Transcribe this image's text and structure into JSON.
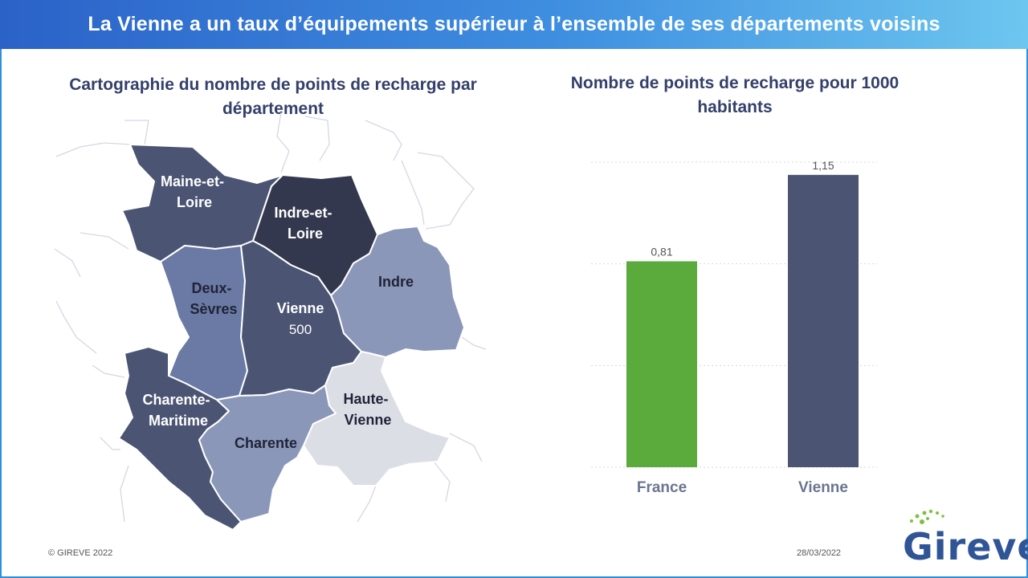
{
  "header": {
    "title": "La Vienne a un taux d’équipements supérieur à l’ensemble de ses départements voisins"
  },
  "map": {
    "title": "Cartographie du nombre de points de recharge par département",
    "departments": [
      {
        "id": "maine-et-loire",
        "label_lines": [
          "Maine-et-",
          "Loire"
        ],
        "color": "#4b5573"
      },
      {
        "id": "indre-et-loire",
        "label_lines": [
          "Indre-et-",
          "Loire"
        ],
        "color": "#33384e"
      },
      {
        "id": "deux-sevres",
        "label_lines": [
          "Deux-",
          "Sèvres"
        ],
        "color": "#6b7aa4"
      },
      {
        "id": "vienne",
        "label_lines": [
          "Vienne"
        ],
        "value": "500",
        "color": "#4b5573"
      },
      {
        "id": "indre",
        "label_lines": [
          "Indre"
        ],
        "color": "#8b97b8"
      },
      {
        "id": "charente-maritime",
        "label_lines": [
          "Charente-",
          "Maritime"
        ],
        "color": "#4b5573"
      },
      {
        "id": "charente",
        "label_lines": [
          "Charente"
        ],
        "color": "#8b97b8"
      },
      {
        "id": "haute-vienne",
        "label_lines": [
          "Haute-",
          "Vienne"
        ],
        "color": "#dcdee6"
      }
    ]
  },
  "chart": {
    "title": "Nombre de points de recharge pour 1000 habitants"
  },
  "chart_data": {
    "type": "bar",
    "categories": [
      "France",
      "Vienne"
    ],
    "values": [
      0.81,
      1.15
    ],
    "value_labels": [
      "0,81",
      "1,15"
    ],
    "colors": [
      "#5aab3c",
      "#4b5573"
    ],
    "title": "Nombre de points de recharge pour 1000 habitants",
    "xlabel": "",
    "ylabel": "",
    "ylim": [
      0,
      1.2
    ],
    "grid": true
  },
  "footer": {
    "copyright": "© GIREVE  2022",
    "date": "28/03/2022"
  },
  "logo": {
    "text": "Gireve",
    "colors": {
      "text": "#2f5597",
      "accent": "#7cc242"
    }
  }
}
